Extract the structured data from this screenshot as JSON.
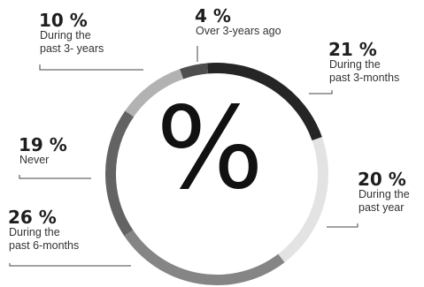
{
  "chart_data": {
    "type": "pie",
    "style": "donut",
    "center_label": "%",
    "slices": [
      {
        "value": 21,
        "percent_label": "21 %",
        "label_lines": [
          "During the",
          "past 3-months"
        ],
        "color": "#252525"
      },
      {
        "value": 20,
        "percent_label": "20 %",
        "label_lines": [
          "During the",
          "past year"
        ],
        "color": "#e3e3e3"
      },
      {
        "value": 26,
        "percent_label": "26 %",
        "label_lines": [
          "During the",
          "past 6-months"
        ],
        "color": "#858585"
      },
      {
        "value": 19,
        "percent_label": "19 %",
        "label_lines": [
          "Never"
        ],
        "color": "#636363"
      },
      {
        "value": 10,
        "percent_label": "10 %",
        "label_lines": [
          "During the",
          "past 3- years"
        ],
        "color": "#b2b2b2"
      },
      {
        "value": 4,
        "percent_label": "4 %",
        "label_lines": [
          "Over 3-years ago"
        ],
        "color": "#4e4e4e"
      }
    ]
  }
}
